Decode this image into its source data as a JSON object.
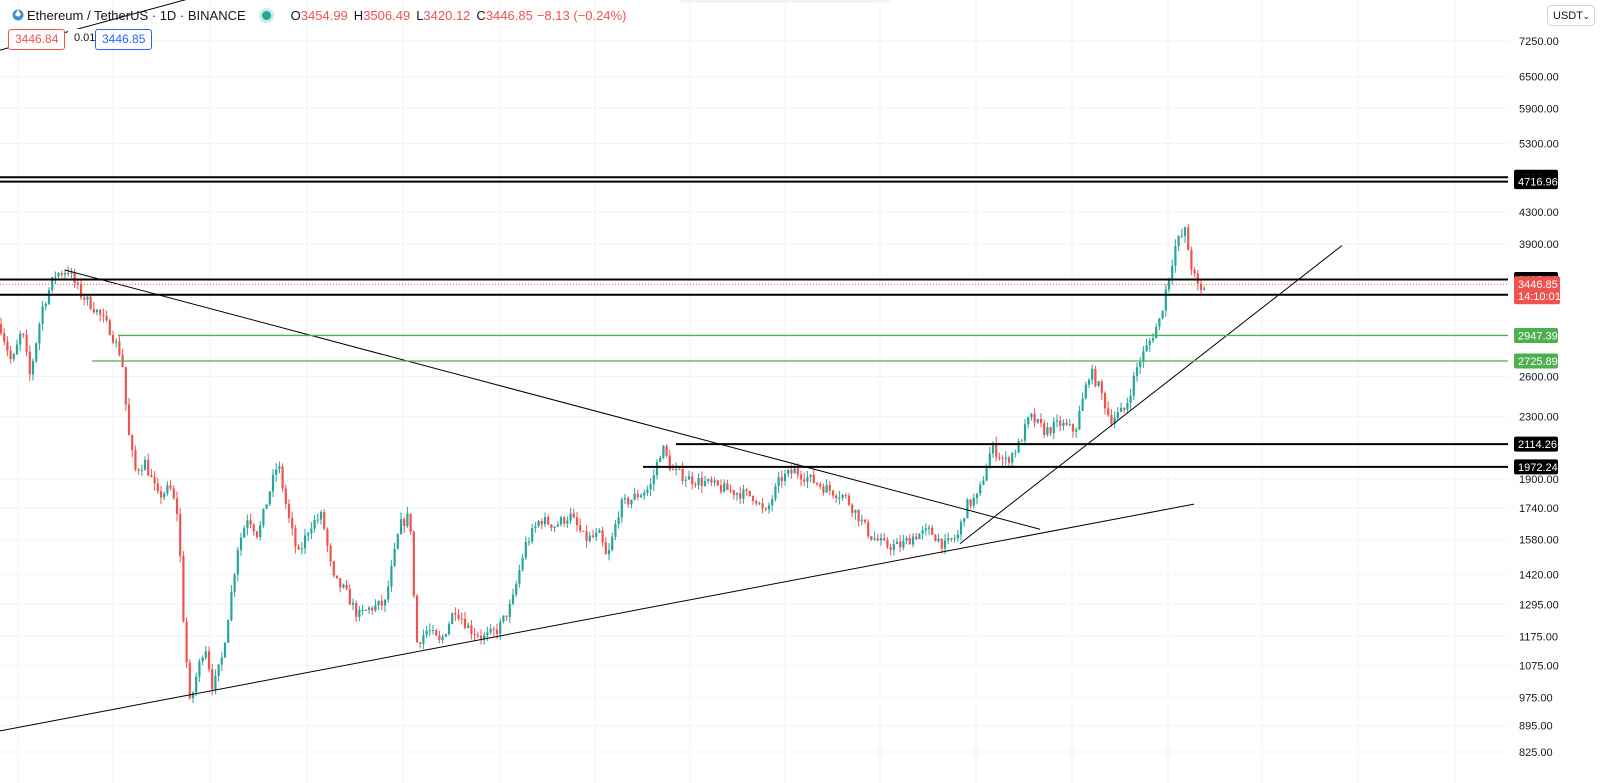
{
  "header": {
    "symbol": "Ethereum / TetherUS · 1D · BINANCE",
    "open_label": "O",
    "open": "3454.99",
    "high_label": "H",
    "high": "3506.49",
    "low_label": "L",
    "low": "3420.12",
    "close_label": "C",
    "close": "3446.85",
    "change": "−8.13 (−0.24%)",
    "bid": "3446.84",
    "spread": "0.01",
    "ask": "3446.85",
    "currency": "USDT"
  },
  "colors": {
    "up": "#26a69a",
    "down": "#ef5350",
    "support_green": "#4caf50",
    "level_black": "#000000",
    "grid": "#f0f3fa"
  },
  "chart_data": {
    "type": "candlestick",
    "scale": "log",
    "ylim": [
      800,
      7800
    ],
    "y_ticks": [
      "7250.00",
      "6500.00",
      "5900.00",
      "5300.00",
      "4300.00",
      "3900.00",
      "2600.00",
      "2300.00",
      "1900.00",
      "1740.00",
      "1580.00",
      "1420.00",
      "1295.00",
      "1175.00",
      "1075.00",
      "975.00",
      "895.00",
      "825.00"
    ],
    "last_price": {
      "value": "3446.85",
      "countdown": "14:10:01"
    },
    "price_levels": [
      {
        "value": "4780.11",
        "style": "black"
      },
      {
        "value": "4716.96",
        "style": "black"
      },
      {
        "value": "3497.10",
        "style": "black"
      },
      {
        "value": "3338.05",
        "style": "black"
      },
      {
        "value": "2947.39",
        "style": "green"
      },
      {
        "value": "2725.89",
        "style": "green"
      },
      {
        "value": "2114.26",
        "style": "black"
      },
      {
        "value": "1972.24",
        "style": "black"
      }
    ],
    "price_path": [
      [
        0,
        3050
      ],
      [
        12,
        2700
      ],
      [
        22,
        3000
      ],
      [
        30,
        2600
      ],
      [
        42,
        3200
      ],
      [
        55,
        3550
      ],
      [
        68,
        3600
      ],
      [
        80,
        3350
      ],
      [
        95,
        3200
      ],
      [
        110,
        3000
      ],
      [
        122,
        2750
      ],
      [
        128,
        2200
      ],
      [
        135,
        1950
      ],
      [
        145,
        2000
      ],
      [
        158,
        1800
      ],
      [
        170,
        1850
      ],
      [
        178,
        1700
      ],
      [
        184,
        1200
      ],
      [
        190,
        950
      ],
      [
        197,
        1050
      ],
      [
        205,
        1150
      ],
      [
        213,
        1000
      ],
      [
        222,
        1100
      ],
      [
        230,
        1300
      ],
      [
        238,
        1550
      ],
      [
        248,
        1700
      ],
      [
        258,
        1600
      ],
      [
        268,
        1800
      ],
      [
        278,
        2000
      ],
      [
        288,
        1700
      ],
      [
        298,
        1500
      ],
      [
        310,
        1650
      ],
      [
        322,
        1700
      ],
      [
        333,
        1400
      ],
      [
        345,
        1350
      ],
      [
        358,
        1250
      ],
      [
        370,
        1280
      ],
      [
        385,
        1300
      ],
      [
        400,
        1650
      ],
      [
        410,
        1700
      ],
      [
        416,
        1150
      ],
      [
        428,
        1200
      ],
      [
        440,
        1150
      ],
      [
        455,
        1280
      ],
      [
        470,
        1200
      ],
      [
        485,
        1170
      ],
      [
        498,
        1200
      ],
      [
        512,
        1300
      ],
      [
        525,
        1550
      ],
      [
        540,
        1680
      ],
      [
        555,
        1650
      ],
      [
        570,
        1700
      ],
      [
        585,
        1580
      ],
      [
        600,
        1600
      ],
      [
        607,
        1480
      ],
      [
        620,
        1750
      ],
      [
        635,
        1800
      ],
      [
        650,
        1850
      ],
      [
        662,
        2100
      ],
      [
        672,
        1950
      ],
      [
        690,
        1900
      ],
      [
        705,
        1880
      ],
      [
        720,
        1850
      ],
      [
        740,
        1820
      ],
      [
        755,
        1800
      ],
      [
        765,
        1700
      ],
      [
        780,
        1900
      ],
      [
        795,
        1950
      ],
      [
        810,
        1900
      ],
      [
        825,
        1850
      ],
      [
        845,
        1800
      ],
      [
        858,
        1700
      ],
      [
        870,
        1600
      ],
      [
        885,
        1550
      ],
      [
        900,
        1550
      ],
      [
        915,
        1600
      ],
      [
        930,
        1620
      ],
      [
        945,
        1550
      ],
      [
        958,
        1600
      ],
      [
        966,
        1750
      ],
      [
        978,
        1800
      ],
      [
        992,
        2100
      ],
      [
        1005,
        2000
      ],
      [
        1018,
        2100
      ],
      [
        1030,
        2300
      ],
      [
        1045,
        2200
      ],
      [
        1060,
        2250
      ],
      [
        1075,
        2200
      ],
      [
        1090,
        2650
      ],
      [
        1100,
        2500
      ],
      [
        1110,
        2280
      ],
      [
        1125,
        2350
      ],
      [
        1138,
        2700
      ],
      [
        1150,
        2900
      ],
      [
        1160,
        3100
      ],
      [
        1168,
        3500
      ],
      [
        1176,
        3900
      ],
      [
        1185,
        4050
      ],
      [
        1192,
        3600
      ],
      [
        1200,
        3350
      ],
      [
        1206,
        3450
      ]
    ],
    "trendlines": [
      {
        "from": [
          0,
          7050
        ],
        "to": [
          578,
          11400
        ]
      },
      {
        "from": [
          0,
          880
        ],
        "to": [
          1194,
          1760
        ]
      },
      {
        "from": [
          65,
          3600
        ],
        "to": [
          1040,
          1630
        ]
      },
      {
        "from": [
          960,
          1560
        ],
        "to": [
          1342,
          3880
        ]
      }
    ],
    "bar_span": [
      0,
      1206
    ]
  }
}
